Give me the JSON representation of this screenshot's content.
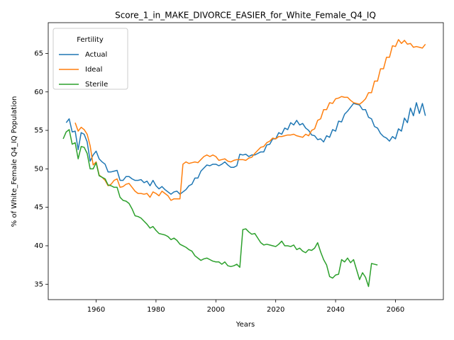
{
  "chart_data": {
    "type": "line",
    "title": "Score_1_in_MAKE_DIVORCE_EASIER_for_White_Female_Q4_IQ",
    "xlabel": "Years",
    "ylabel": "% of White_Female Q4_IQ Population",
    "legend": {
      "title": "Fertility",
      "loc": "upper left"
    },
    "grid": false,
    "xlim": [
      1944,
      2076
    ],
    "ylim": [
      33,
      69
    ],
    "xticks": [
      1960,
      1980,
      2000,
      2020,
      2040,
      2060
    ],
    "yticks": [
      35,
      40,
      45,
      50,
      55,
      60,
      65
    ],
    "x": [
      1949,
      1950,
      1951,
      1952,
      1953,
      1954,
      1955,
      1956,
      1957,
      1958,
      1959,
      1960,
      1961,
      1962,
      1963,
      1964,
      1965,
      1966,
      1967,
      1968,
      1969,
      1970,
      1971,
      1972,
      1973,
      1974,
      1975,
      1976,
      1977,
      1978,
      1979,
      1980,
      1981,
      1982,
      1983,
      1984,
      1985,
      1986,
      1987,
      1988,
      1989,
      1990,
      1991,
      1992,
      1993,
      1994,
      1995,
      1996,
      1997,
      1998,
      1999,
      2000,
      2001,
      2002,
      2003,
      2004,
      2005,
      2006,
      2007,
      2008,
      2009,
      2010,
      2011,
      2012,
      2013,
      2014,
      2015,
      2016,
      2017,
      2018,
      2019,
      2020,
      2021,
      2022,
      2023,
      2024,
      2025,
      2026,
      2027,
      2028,
      2029,
      2030,
      2031,
      2032,
      2033,
      2034,
      2035,
      2036,
      2037,
      2038,
      2039,
      2040,
      2041,
      2042,
      2043,
      2044,
      2045,
      2046,
      2047,
      2048,
      2049,
      2050,
      2051,
      2052,
      2053,
      2054,
      2055,
      2056,
      2057,
      2058,
      2059,
      2060,
      2061,
      2062,
      2063,
      2064,
      2065,
      2066,
      2067,
      2068,
      2069,
      2070
    ],
    "series": [
      {
        "name": "Actual",
        "color": "#1f77b4",
        "values": [
          null,
          56.0,
          56.5,
          54.8,
          54.9,
          52.5,
          54.7,
          54.5,
          53.5,
          51.0,
          51.8,
          52.3,
          51.3,
          50.9,
          50.6,
          49.6,
          49.6,
          49.7,
          49.8,
          48.5,
          48.5,
          49.0,
          49.0,
          48.7,
          48.5,
          48.5,
          48.6,
          48.2,
          48.4,
          47.8,
          48.5,
          47.8,
          47.4,
          47.7,
          47.3,
          47.0,
          46.7,
          47.0,
          47.1,
          46.7,
          47.0,
          47.3,
          47.8,
          48.0,
          48.8,
          48.8,
          49.7,
          50.1,
          50.5,
          50.4,
          50.6,
          50.6,
          50.4,
          50.6,
          50.9,
          50.5,
          50.2,
          50.2,
          50.4,
          51.9,
          51.8,
          51.9,
          51.6,
          51.8,
          51.8,
          52.0,
          52.2,
          52.2,
          53.1,
          53.2,
          53.9,
          53.9,
          54.7,
          54.5,
          55.3,
          55.1,
          56.0,
          55.7,
          56.3,
          55.7,
          55.9,
          55.3,
          55.0,
          54.4,
          54.3,
          53.8,
          53.9,
          53.5,
          54.3,
          54.1,
          55.1,
          54.9,
          56.2,
          56.1,
          57.1,
          57.5,
          58.0,
          58.5,
          58.4,
          58.3,
          57.7,
          57.7,
          56.7,
          56.5,
          55.5,
          55.3,
          54.6,
          54.2,
          54.0,
          53.6,
          54.2,
          53.9,
          55.2,
          54.9,
          56.6,
          56.0,
          57.9,
          56.9,
          58.6,
          57.2,
          58.5,
          56.9
        ]
      },
      {
        "name": "Ideal",
        "color": "#ff7f0e",
        "values": [
          null,
          null,
          null,
          null,
          56.0,
          54.9,
          55.4,
          55.1,
          54.5,
          53.0,
          50.5,
          50.9,
          49.2,
          48.9,
          48.5,
          47.8,
          48.0,
          48.5,
          48.7,
          47.6,
          47.7,
          48.0,
          48.1,
          47.6,
          47.1,
          46.8,
          46.8,
          46.7,
          46.8,
          46.3,
          47.0,
          46.8,
          46.5,
          47.1,
          46.8,
          46.5,
          45.9,
          46.1,
          46.1,
          46.1,
          50.6,
          50.9,
          50.7,
          50.8,
          50.9,
          50.8,
          51.2,
          51.6,
          51.8,
          51.6,
          51.8,
          51.6,
          51.1,
          51.2,
          51.3,
          51.0,
          50.9,
          51.1,
          51.2,
          51.2,
          51.2,
          51.1,
          51.4,
          51.5,
          52.0,
          52.4,
          52.8,
          52.9,
          53.4,
          53.6,
          54.0,
          53.9,
          54.2,
          54.2,
          54.3,
          54.4,
          54.4,
          54.5,
          54.3,
          54.2,
          54.1,
          54.5,
          54.3,
          55.0,
          55.2,
          56.3,
          56.5,
          57.7,
          57.7,
          58.6,
          58.5,
          59.1,
          59.2,
          59.4,
          59.3,
          59.3,
          58.9,
          58.6,
          58.5,
          58.4,
          58.7,
          59.1,
          59.9,
          59.9,
          61.4,
          61.4,
          63.0,
          63.0,
          64.5,
          64.5,
          66.0,
          65.9,
          66.8,
          66.3,
          66.7,
          66.2,
          66.3,
          65.8,
          65.9,
          65.8,
          65.7,
          66.2
        ]
      },
      {
        "name": "Sterile",
        "color": "#2ca02c",
        "values": [
          53.9,
          54.8,
          55.1,
          53.2,
          53.4,
          51.3,
          52.9,
          52.8,
          52.0,
          50.0,
          50.0,
          50.8,
          49.1,
          48.9,
          48.7,
          47.9,
          47.8,
          47.6,
          47.6,
          46.3,
          45.9,
          45.8,
          45.5,
          44.8,
          43.9,
          43.8,
          43.6,
          43.2,
          42.8,
          42.3,
          42.5,
          42.0,
          41.6,
          41.5,
          41.4,
          41.2,
          40.8,
          41.0,
          40.7,
          40.2,
          40.0,
          39.8,
          39.5,
          39.3,
          38.7,
          38.4,
          38.1,
          38.3,
          38.4,
          38.2,
          38.0,
          37.9,
          37.9,
          37.6,
          37.9,
          37.4,
          37.3,
          37.4,
          37.6,
          37.2,
          42.1,
          42.2,
          41.8,
          41.5,
          41.6,
          41.0,
          40.4,
          40.1,
          40.2,
          40.1,
          40.0,
          39.9,
          40.2,
          40.6,
          40.0,
          40.0,
          39.9,
          40.1,
          39.5,
          39.7,
          39.3,
          39.1,
          39.5,
          39.4,
          39.7,
          40.4,
          39.2,
          38.2,
          37.5,
          36.0,
          35.8,
          36.2,
          36.3,
          38.2,
          37.9,
          38.4,
          37.8,
          38.2,
          36.9,
          35.6,
          36.5,
          35.9,
          34.7,
          37.7,
          37.6,
          37.5,
          null,
          null,
          null,
          null,
          null,
          null,
          null,
          null,
          null,
          null,
          null,
          null,
          null,
          null,
          null,
          null
        ]
      }
    ]
  }
}
